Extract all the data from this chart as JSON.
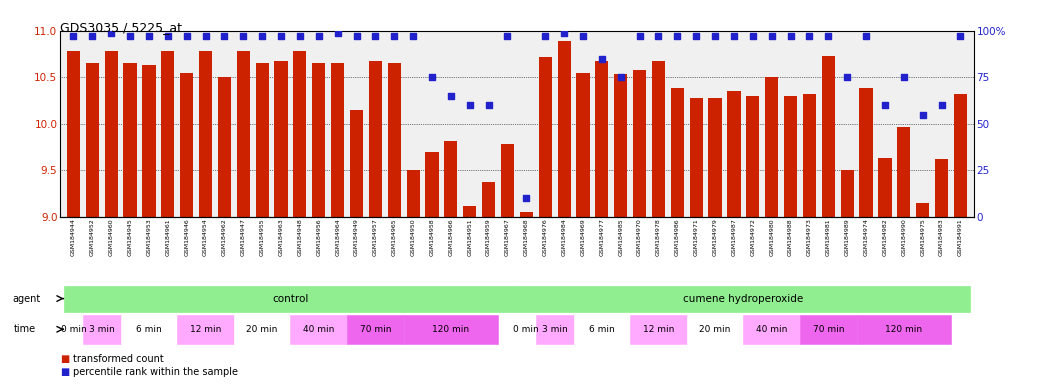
{
  "title": "GDS3035 / 5225_at",
  "samples": [
    "GSM184944",
    "GSM184952",
    "GSM184960",
    "GSM184945",
    "GSM184953",
    "GSM184961",
    "GSM184946",
    "GSM184954",
    "GSM184962",
    "GSM184947",
    "GSM184955",
    "GSM184963",
    "GSM184948",
    "GSM184956",
    "GSM184964",
    "GSM184949",
    "GSM184957",
    "GSM184965",
    "GSM184950",
    "GSM184958",
    "GSM184966",
    "GSM184951",
    "GSM184959",
    "GSM184967",
    "GSM184968",
    "GSM184976",
    "GSM184984",
    "GSM184969",
    "GSM184977",
    "GSM184985",
    "GSM184970",
    "GSM184978",
    "GSM184986",
    "GSM184971",
    "GSM184979",
    "GSM184987",
    "GSM184972",
    "GSM184980",
    "GSM184988",
    "GSM184973",
    "GSM184981",
    "GSM184989",
    "GSM184974",
    "GSM184982",
    "GSM184990",
    "GSM184975",
    "GSM184983",
    "GSM184991"
  ],
  "bar_values": [
    10.78,
    10.65,
    10.78,
    10.65,
    10.63,
    10.78,
    10.55,
    10.78,
    10.5,
    10.78,
    10.65,
    10.68,
    10.78,
    10.65,
    10.65,
    10.15,
    10.68,
    10.65,
    9.5,
    9.7,
    9.82,
    9.12,
    9.38,
    9.78,
    9.05,
    10.72,
    10.89,
    10.55,
    10.68,
    10.54,
    10.58,
    10.67,
    10.38,
    10.28,
    10.28,
    10.35,
    10.3,
    10.5,
    10.3,
    10.32,
    10.73,
    9.5,
    10.38,
    9.63,
    9.97,
    9.15,
    9.62,
    10.32
  ],
  "percentile_values": [
    97,
    97,
    99,
    97,
    97,
    97,
    97,
    97,
    97,
    97,
    97,
    97,
    97,
    97,
    99,
    97,
    97,
    97,
    97,
    75,
    65,
    60,
    60,
    97,
    10,
    97,
    99,
    97,
    85,
    75,
    97,
    97,
    97,
    97,
    97,
    97,
    97,
    97,
    97,
    97,
    97,
    75,
    97,
    60,
    75,
    55,
    60,
    97
  ],
  "ylim_left": [
    9.0,
    11.0
  ],
  "ylim_right": [
    0,
    100
  ],
  "yticks_left": [
    9.0,
    9.5,
    10.0,
    10.5,
    11.0
  ],
  "yticks_right": [
    0,
    25,
    50,
    75,
    100
  ],
  "bar_color": "#cc2200",
  "percentile_color": "#2222cc",
  "bg_color": "#ffffff",
  "plot_bg_color": "#f0f0f0",
  "time_sizes": [
    1,
    2,
    3,
    3,
    3,
    3,
    3,
    5
  ],
  "time_labels": [
    "0 min",
    "3 min",
    "6 min",
    "12 min",
    "20 min",
    "40 min",
    "70 min",
    "120 min"
  ],
  "time_colors": [
    "#ffffff",
    "#ffaaff",
    "#ffffff",
    "#ffaaff",
    "#ffffff",
    "#ffaaff",
    "#ee66ee",
    "#ee66ee"
  ],
  "agent_labels": [
    "control",
    "cumene hydroperoxide"
  ],
  "agent_color": "#90ee90",
  "agent_split": 24,
  "n_samples": 48
}
